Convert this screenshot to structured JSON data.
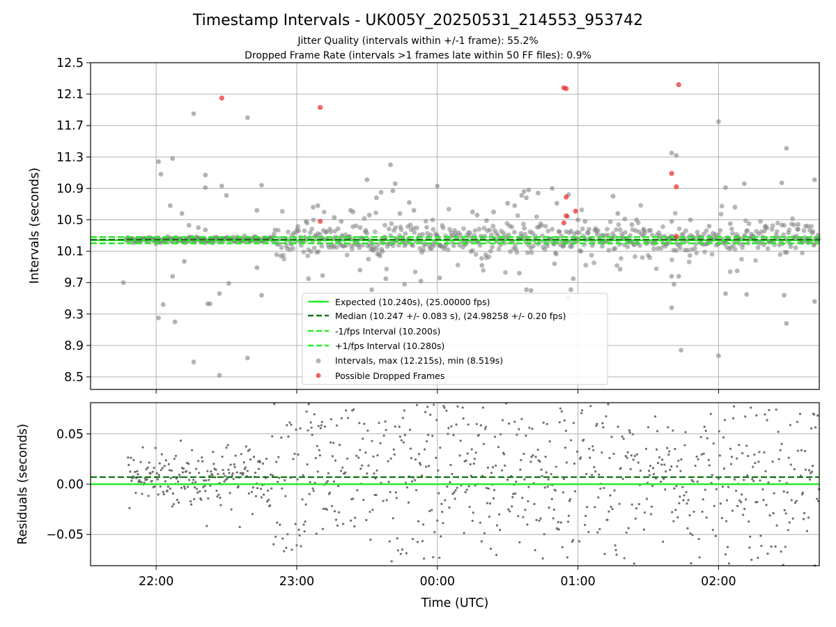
{
  "figure": {
    "title": "Timestamp Intervals - UK005Y_20250531_214553_953742",
    "subtitle_1": "Jitter Quality (intervals within +/-1 frame): 55.2%",
    "subtitle_2": "Dropped Frame Rate (intervals >1 frames late within 50 FF files): 0.9%"
  },
  "colors": {
    "expected": "#22ee22",
    "median": "#117711",
    "interval_band": "#22ee22",
    "points": "#808080",
    "dropped": "#ee2222",
    "grid": "#b0b0b0"
  },
  "chart_data": [
    {
      "type": "scatter",
      "ylabel": "Intervals (seconds)",
      "xlabel": "",
      "x_unit": "time (UTC)",
      "xlim": [
        "21:32",
        "02:43"
      ],
      "ylim": [
        8.34,
        12.5
      ],
      "x_ticks": [
        "22:00",
        "23:00",
        "00:00",
        "01:00",
        "02:00"
      ],
      "y_ticks": [
        "8.5",
        "8.9",
        "9.3",
        "9.7",
        "10.1",
        "10.5",
        "10.9",
        "11.3",
        "11.7",
        "12.1",
        "12.5"
      ],
      "grid": true,
      "legend_placement": "lower-center",
      "lines": [
        {
          "name": "Expected (10.240s), (25.00000 fps)",
          "y": 10.24,
          "style": "solid"
        },
        {
          "name": "Median (10.247 +/- 0.083 s), (24.98258 +/- 0.20 fps)",
          "y": 10.247,
          "style": "dashed"
        },
        {
          "name": "-1/fps Interval (10.200s)",
          "y": 10.2,
          "style": "dashed"
        },
        {
          "name": "+1/fps Interval (10.280s)",
          "y": 10.28,
          "style": "dashed"
        }
      ],
      "series": [
        {
          "name": "Intervals, max (12.215s), min (8.519s)",
          "points": [
            [
              "21:46",
              9.7
            ],
            [
              "22:01",
              11.24
            ],
            [
              "22:02",
              11.08
            ],
            [
              "22:03",
              9.42
            ],
            [
              "22:01",
              9.25
            ],
            [
              "22:06",
              10.68
            ],
            [
              "22:07",
              11.28
            ],
            [
              "22:07",
              9.78
            ],
            [
              "22:08",
              9.2
            ],
            [
              "22:11",
              10.58
            ],
            [
              "22:12",
              9.97
            ],
            [
              "22:14",
              10.43
            ],
            [
              "22:16",
              8.69
            ],
            [
              "22:16",
              11.85
            ],
            [
              "22:18",
              10.4
            ],
            [
              "22:21",
              10.91
            ],
            [
              "22:21",
              11.07
            ],
            [
              "22:21",
              10.37
            ],
            [
              "22:22",
              9.43
            ],
            [
              "22:23",
              9.43
            ],
            [
              "22:27",
              8.52
            ],
            [
              "22:27",
              9.56
            ],
            [
              "22:28",
              10.93
            ],
            [
              "22:30",
              10.81
            ],
            [
              "22:31",
              9.69
            ],
            [
              "22:39",
              11.8
            ],
            [
              "22:39",
              8.74
            ],
            [
              "22:43",
              10.62
            ],
            [
              "22:43",
              9.89
            ],
            [
              "22:45",
              10.94
            ],
            [
              "22:45",
              9.54
            ],
            [
              "23:04",
              10.48
            ],
            [
              "23:05",
              9.75
            ],
            [
              "23:07",
              10.66
            ],
            [
              "23:09",
              10.68
            ],
            [
              "23:11",
              9.79
            ],
            [
              "23:16",
              10.53
            ],
            [
              "23:19",
              10.48
            ],
            [
              "23:23",
              10.62
            ],
            [
              "23:24",
              10.6
            ],
            [
              "23:27",
              9.86
            ],
            [
              "23:30",
              11.01
            ],
            [
              "23:31",
              10.56
            ],
            [
              "23:32",
              9.61
            ],
            [
              "23:34",
              10.78
            ],
            [
              "23:36",
              10.85
            ],
            [
              "23:38",
              9.75
            ],
            [
              "23:40",
              11.2
            ],
            [
              "23:41",
              10.87
            ],
            [
              "23:42",
              10.96
            ],
            [
              "23:44",
              10.58
            ],
            [
              "23:46",
              9.68
            ],
            [
              "23:48",
              10.72
            ],
            [
              "23:50",
              10.62
            ],
            [
              "23:53",
              9.72
            ],
            [
              "23:58",
              10.5
            ],
            [
              "00:00",
              10.93
            ],
            [
              "00:01",
              9.76
            ],
            [
              "00:15",
              10.6
            ],
            [
              "00:17",
              10.56
            ],
            [
              "00:19",
              9.92
            ],
            [
              "00:21",
              10.49
            ],
            [
              "00:24",
              10.6
            ],
            [
              "00:30",
              10.71
            ],
            [
              "00:33",
              10.68
            ],
            [
              "00:35",
              9.82
            ],
            [
              "00:36",
              10.81
            ],
            [
              "00:37",
              10.86
            ],
            [
              "00:38",
              10.78
            ],
            [
              "00:39",
              10.88
            ],
            [
              "00:38",
              9.61
            ],
            [
              "00:40",
              9.6
            ],
            [
              "00:43",
              10.84
            ],
            [
              "00:49",
              10.9
            ],
            [
              "00:50",
              9.94
            ],
            [
              "00:51",
              10.71
            ],
            [
              "00:56",
              10.82
            ],
            [
              "00:56",
              9.51
            ],
            [
              "00:57",
              9.61
            ],
            [
              "00:58",
              9.75
            ],
            [
              "01:00",
              10.5
            ],
            [
              "01:03",
              10.48
            ],
            [
              "01:15",
              10.8
            ],
            [
              "01:17",
              10.58
            ],
            [
              "01:18",
              9.87
            ],
            [
              "01:20",
              10.51
            ],
            [
              "01:23",
              10.44
            ],
            [
              "01:25",
              10.5
            ],
            [
              "01:28",
              10.38
            ],
            [
              "01:40",
              10.48
            ],
            [
              "01:40",
              9.78
            ],
            [
              "01:41",
              9.68
            ],
            [
              "01:40",
              9.38
            ],
            [
              "01:40",
              11.35
            ],
            [
              "01:42",
              11.32
            ],
            [
              "01:43",
              9.78
            ],
            [
              "01:44",
              8.84
            ],
            [
              "01:48",
              10.5
            ],
            [
              "01:56",
              10.42
            ],
            [
              "02:00",
              8.77
            ],
            [
              "02:00",
              11.75
            ],
            [
              "02:03",
              10.91
            ],
            [
              "02:03",
              9.56
            ],
            [
              "02:05",
              10.45
            ],
            [
              "02:07",
              10.66
            ],
            [
              "02:08",
              9.85
            ],
            [
              "02:11",
              10.96
            ],
            [
              "02:12",
              9.55
            ],
            [
              "02:20",
              10.42
            ],
            [
              "02:27",
              10.97
            ],
            [
              "02:28",
              9.54
            ],
            [
              "02:29",
              11.41
            ],
            [
              "02:29",
              9.18
            ],
            [
              "02:34",
              10.44
            ],
            [
              "02:41",
              11.01
            ],
            [
              "02:41",
              9.46
            ],
            [
              "02:38",
              10.42
            ]
          ]
        },
        {
          "name": "Possible Dropped Frames",
          "points": [
            [
              "22:28",
              12.05
            ],
            [
              "23:10",
              11.93
            ],
            [
              "23:10",
              10.48
            ],
            [
              "00:54",
              12.18
            ],
            [
              "00:55",
              12.17
            ],
            [
              "00:55",
              10.55
            ],
            [
              "00:55",
              10.79
            ],
            [
              "00:54",
              10.46
            ],
            [
              "00:59",
              10.61
            ],
            [
              "01:40",
              11.09
            ],
            [
              "01:42",
              10.92
            ],
            [
              "01:43",
              12.22
            ],
            [
              "01:42",
              10.29
            ]
          ]
        }
      ],
      "dense_band": {
        "center": 10.247,
        "spread_before_2250": 0.02,
        "spread_after_2250": 0.09
      }
    },
    {
      "type": "scatter",
      "ylabel": "Residuals (seconds)",
      "xlabel": "Time (UTC)",
      "xlim": [
        "21:32",
        "02:43"
      ],
      "ylim": [
        -0.081,
        0.081
      ],
      "x_ticks": [
        "22:00",
        "23:00",
        "00:00",
        "01:00",
        "02:00"
      ],
      "y_ticks": [
        "0.05",
        "0.00",
        "−0.05"
      ],
      "grid": true,
      "lines": [
        {
          "name": "Expected",
          "y": 0.0,
          "style": "solid"
        },
        {
          "name": "Median",
          "y": 0.007,
          "style": "dashed"
        }
      ],
      "residual_spread": {
        "before_2250": 0.017,
        "after_2250": 0.05,
        "center": 0.007
      }
    }
  ]
}
